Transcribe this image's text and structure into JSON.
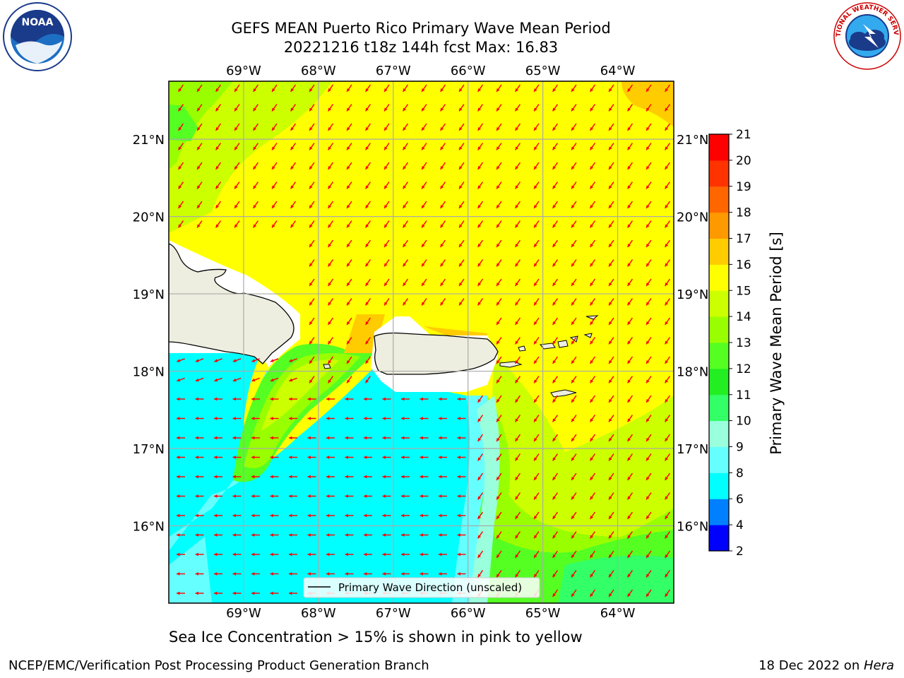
{
  "title": {
    "line1": "GEFS MEAN Puerto Rico Primary Wave Mean Period",
    "line2": "20221216 t18z 144h fcst   Max: 16.83"
  },
  "map": {
    "lon_labels": [
      "69°W",
      "68°W",
      "67°W",
      "66°W",
      "65°W",
      "64°W"
    ],
    "lat_labels": [
      "21°N",
      "20°N",
      "19°N",
      "18°N",
      "17°N",
      "16°N"
    ],
    "lon_range": [
      -70.0,
      -63.25
    ],
    "lat_range": [
      15.0,
      21.75
    ],
    "legend_label": "Primary Wave Direction (unscaled)",
    "arrow_color": "#ff0000",
    "land_color": "#eeeee0"
  },
  "colorbar": {
    "label": "Primary Wave Mean Period [s]",
    "ticks": [
      "2",
      "4",
      "6",
      "8",
      "9",
      "10",
      "11",
      "12",
      "13",
      "14",
      "15",
      "16",
      "17",
      "18",
      "19",
      "20",
      "21"
    ],
    "colors": [
      "#0000ff",
      "#0080ff",
      "#00ffff",
      "#66ffff",
      "#99ffdd",
      "#33ff66",
      "#22ee22",
      "#55ff22",
      "#99ff00",
      "#ccff00",
      "#ffff00",
      "#ffcc00",
      "#ff9900",
      "#ff6600",
      "#ff3300",
      "#ff0000"
    ]
  },
  "note": "Sea Ice Concentration > 15% is shown in pink to yellow",
  "footer": {
    "left": "NCEP/EMC/Verification Post Processing Product Generation Branch",
    "right_date": "18 Dec 2022 on ",
    "right_machine": "Hera"
  },
  "logos": {
    "noaa_text": "NOAA",
    "nws_text": "NATIONAL WEATHER SERVICE"
  }
}
